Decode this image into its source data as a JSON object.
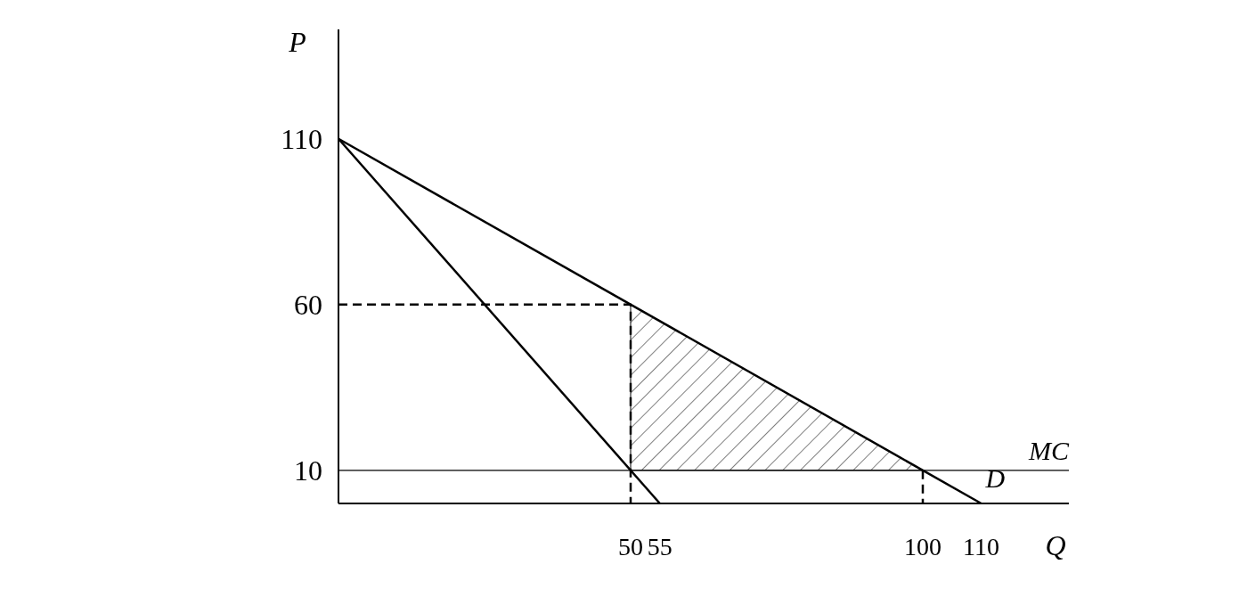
{
  "chart_data": {
    "type": "line",
    "xlabel": "Q",
    "ylabel": "P",
    "xlim": [
      0,
      125
    ],
    "ylim": [
      0,
      143
    ],
    "xticks": [
      50,
      55,
      100,
      110
    ],
    "yticks": [
      10,
      60,
      110
    ],
    "grid": false,
    "marker": "none",
    "series": [
      {
        "name": "D",
        "color": "#000000",
        "x": [
          0,
          110
        ],
        "values": [
          110,
          0
        ],
        "line_style": "solid"
      },
      {
        "color": "#000000",
        "x": [
          0,
          55
        ],
        "values": [
          110,
          0
        ],
        "line_style": "solid"
      },
      {
        "color": "#000000",
        "x": [
          0,
          50,
          50
        ],
        "values": [
          60,
          60,
          0
        ],
        "line_style": "dashed"
      },
      {
        "color": "#000000",
        "x": [
          100,
          100
        ],
        "values": [
          10,
          0
        ],
        "line_style": "dashed"
      },
      {
        "type": "area",
        "color": "#000000",
        "x": [
          50,
          100
        ],
        "values": [
          60,
          10
        ]
      }
    ],
    "ref_lines": [
      {
        "axis": "y",
        "value": 10,
        "label": "MC",
        "color": "#000000",
        "line_style": "solid"
      }
    ]
  }
}
